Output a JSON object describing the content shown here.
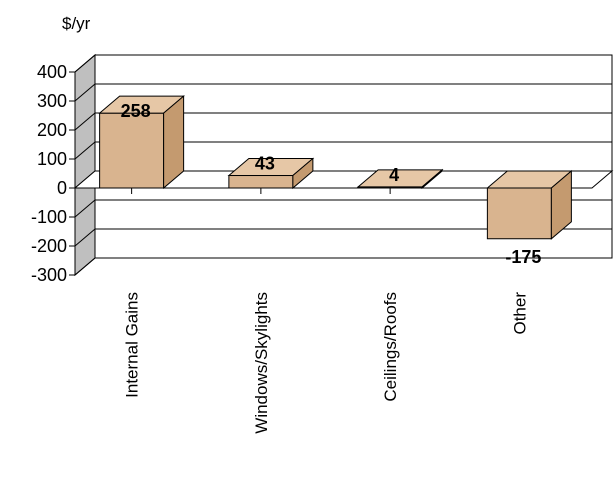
{
  "chart_data": {
    "type": "bar",
    "ylabel": "$/yr",
    "categories": [
      "Internal Gains",
      "Windows/Skylights",
      "Ceilings/Roofs",
      "Other"
    ],
    "values": [
      258,
      43,
      4,
      -175
    ],
    "data_labels": [
      "258",
      "43",
      "4",
      "-175"
    ],
    "ylim": [
      -300,
      400
    ],
    "yticks": [
      "400",
      "300",
      "200",
      "100",
      "0",
      "-100",
      "-200",
      "-300"
    ],
    "grid": true,
    "legend": "none",
    "colors": {
      "bar_front": "#d9b48f",
      "bar_top": "#e6c7a6",
      "bar_side": "#c49a6f",
      "wall": "#bfbfbf",
      "floor": "#ffffff"
    }
  }
}
